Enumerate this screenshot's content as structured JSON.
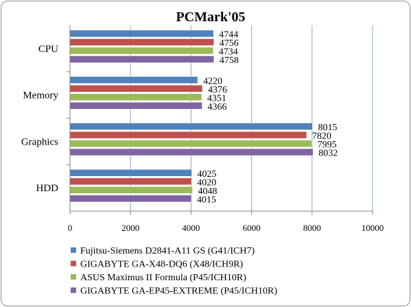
{
  "chart_data": {
    "type": "bar",
    "orientation": "horizontal",
    "title": "PCMark'05",
    "xlabel": "",
    "ylabel": "",
    "xlim": [
      0,
      10000
    ],
    "ticks": [
      0,
      2000,
      4000,
      6000,
      8000,
      10000
    ],
    "tick_labels": [
      "0",
      "2000",
      "4000",
      "6000",
      "8000",
      "10000"
    ],
    "grid": true,
    "legend_position": "bottom",
    "categories": [
      "CPU",
      "Memory",
      "Graphics",
      "HDD"
    ],
    "series": [
      {
        "name": "Fujitsu-Siemens D2841-A11 GS (G41/ICH7)",
        "color": "#4f81bd",
        "values": [
          4744,
          4220,
          8015,
          4025
        ],
        "labels": [
          "4744",
          "4220",
          "8015",
          "4025"
        ]
      },
      {
        "name": "GIGABYTE GA-X48-DQ6 (X48/ICH9R)",
        "color": "#c0504d",
        "values": [
          4756,
          4376,
          7820,
          4020
        ],
        "labels": [
          "4756",
          "4376",
          "7820",
          "4020"
        ]
      },
      {
        "name": "ASUS Maximus II Formula (P45/ICH10R)",
        "color": "#9bbb59",
        "values": [
          4734,
          4351,
          7995,
          4048
        ],
        "labels": [
          "4734",
          "4351",
          "7995",
          "4048"
        ]
      },
      {
        "name": "GIGABYTE GA-EP45-EXTREME (P45/ICH10R)",
        "color": "#8064a2",
        "values": [
          4758,
          4366,
          8032,
          4015
        ],
        "labels": [
          "4758",
          "4366",
          "8032",
          "4015"
        ]
      }
    ]
  }
}
